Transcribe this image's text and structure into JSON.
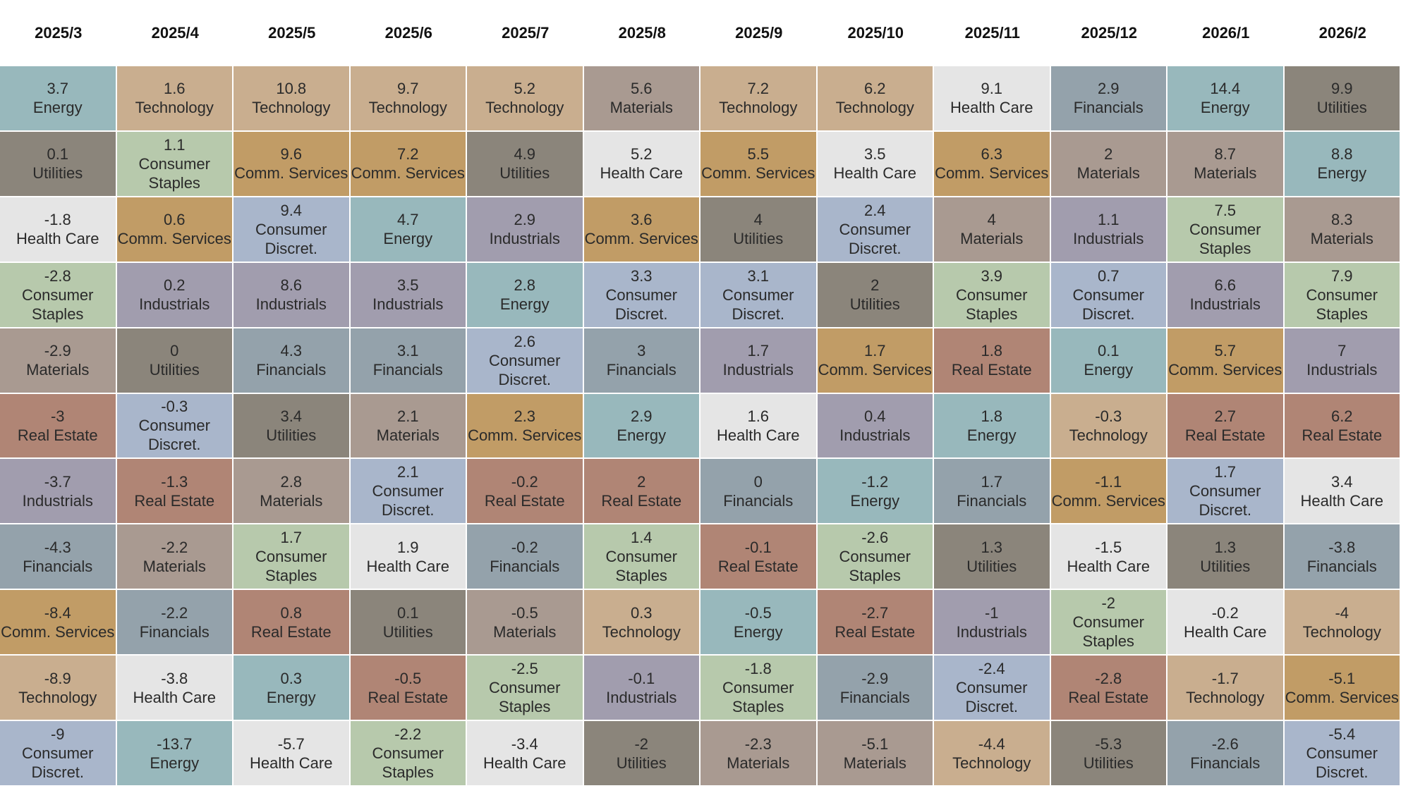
{
  "colors": {
    "Energy": "#98b8bc",
    "Technology": "#c9ae8f",
    "Materials": "#a99a91",
    "Health Care": "#e5e5e5",
    "Financials": "#94a2ab",
    "Utilities": "#8b857b",
    "Consumer Staples": "#b7c9ac",
    "Comm. Services": "#c19c66",
    "Consumer Discret.": "#a9b6cb",
    "Industrials": "#a19dae",
    "Real Estate": "#b08575"
  },
  "chart_data": {
    "type": "table",
    "columns": [
      "2025/3",
      "2025/4",
      "2025/5",
      "2025/6",
      "2025/7",
      "2025/8",
      "2025/9",
      "2025/10",
      "2025/11",
      "2025/12",
      "2026/1",
      "2026/2"
    ],
    "cells": [
      [
        [
          "3.7",
          "Energy"
        ],
        [
          "0.1",
          "Utilities"
        ],
        [
          "-1.8",
          "Health Care"
        ],
        [
          "-2.8",
          "Consumer Staples"
        ],
        [
          "-2.9",
          "Materials"
        ],
        [
          "-3",
          "Real Estate"
        ],
        [
          "-3.7",
          "Industrials"
        ],
        [
          "-4.3",
          "Financials"
        ],
        [
          "-8.4",
          "Comm. Services"
        ],
        [
          "-8.9",
          "Technology"
        ],
        [
          "-9",
          "Consumer Discret."
        ]
      ],
      [
        [
          "1.6",
          "Technology"
        ],
        [
          "1.1",
          "Consumer Staples"
        ],
        [
          "0.6",
          "Comm. Services"
        ],
        [
          "0.2",
          "Industrials"
        ],
        [
          "0",
          "Utilities"
        ],
        [
          "-0.3",
          "Consumer Discret."
        ],
        [
          "-1.3",
          "Real Estate"
        ],
        [
          "-2.2",
          "Materials"
        ],
        [
          "-2.2",
          "Financials"
        ],
        [
          "-3.8",
          "Health Care"
        ],
        [
          "-13.7",
          "Energy"
        ]
      ],
      [
        [
          "10.8",
          "Technology"
        ],
        [
          "9.6",
          "Comm. Services"
        ],
        [
          "9.4",
          "Consumer Discret."
        ],
        [
          "8.6",
          "Industrials"
        ],
        [
          "4.3",
          "Financials"
        ],
        [
          "3.4",
          "Utilities"
        ],
        [
          "2.8",
          "Materials"
        ],
        [
          "1.7",
          "Consumer Staples"
        ],
        [
          "0.8",
          "Real Estate"
        ],
        [
          "0.3",
          "Energy"
        ],
        [
          "-5.7",
          "Health Care"
        ]
      ],
      [
        [
          "9.7",
          "Technology"
        ],
        [
          "7.2",
          "Comm. Services"
        ],
        [
          "4.7",
          "Energy"
        ],
        [
          "3.5",
          "Industrials"
        ],
        [
          "3.1",
          "Financials"
        ],
        [
          "2.1",
          "Materials"
        ],
        [
          "2.1",
          "Consumer Discret."
        ],
        [
          "1.9",
          "Health Care"
        ],
        [
          "0.1",
          "Utilities"
        ],
        [
          "-0.5",
          "Real Estate"
        ],
        [
          "-2.2",
          "Consumer Staples"
        ]
      ],
      [
        [
          "5.2",
          "Technology"
        ],
        [
          "4.9",
          "Utilities"
        ],
        [
          "2.9",
          "Industrials"
        ],
        [
          "2.8",
          "Energy"
        ],
        [
          "2.6",
          "Consumer Discret."
        ],
        [
          "2.3",
          "Comm. Services"
        ],
        [
          "-0.2",
          "Real Estate"
        ],
        [
          "-0.2",
          "Financials"
        ],
        [
          "-0.5",
          "Materials"
        ],
        [
          "-2.5",
          "Consumer Staples"
        ],
        [
          "-3.4",
          "Health Care"
        ]
      ],
      [
        [
          "5.6",
          "Materials"
        ],
        [
          "5.2",
          "Health Care"
        ],
        [
          "3.6",
          "Comm. Services"
        ],
        [
          "3.3",
          "Consumer Discret."
        ],
        [
          "3",
          "Financials"
        ],
        [
          "2.9",
          "Energy"
        ],
        [
          "2",
          "Real Estate"
        ],
        [
          "1.4",
          "Consumer Staples"
        ],
        [
          "0.3",
          "Technology"
        ],
        [
          "-0.1",
          "Industrials"
        ],
        [
          "-2",
          "Utilities"
        ]
      ],
      [
        [
          "7.2",
          "Technology"
        ],
        [
          "5.5",
          "Comm. Services"
        ],
        [
          "4",
          "Utilities"
        ],
        [
          "3.1",
          "Consumer Discret."
        ],
        [
          "1.7",
          "Industrials"
        ],
        [
          "1.6",
          "Health Care"
        ],
        [
          "0",
          "Financials"
        ],
        [
          "-0.1",
          "Real Estate"
        ],
        [
          "-0.5",
          "Energy"
        ],
        [
          "-1.8",
          "Consumer Staples"
        ],
        [
          "-2.3",
          "Materials"
        ]
      ],
      [
        [
          "6.2",
          "Technology"
        ],
        [
          "3.5",
          "Health Care"
        ],
        [
          "2.4",
          "Consumer Discret."
        ],
        [
          "2",
          "Utilities"
        ],
        [
          "1.7",
          "Comm. Services"
        ],
        [
          "0.4",
          "Industrials"
        ],
        [
          "-1.2",
          "Energy"
        ],
        [
          "-2.6",
          "Consumer Staples"
        ],
        [
          "-2.7",
          "Real Estate"
        ],
        [
          "-2.9",
          "Financials"
        ],
        [
          "-5.1",
          "Materials"
        ]
      ],
      [
        [
          "9.1",
          "Health Care"
        ],
        [
          "6.3",
          "Comm. Services"
        ],
        [
          "4",
          "Materials"
        ],
        [
          "3.9",
          "Consumer Staples"
        ],
        [
          "1.8",
          "Real Estate"
        ],
        [
          "1.8",
          "Energy"
        ],
        [
          "1.7",
          "Financials"
        ],
        [
          "1.3",
          "Utilities"
        ],
        [
          "-1",
          "Industrials"
        ],
        [
          "-2.4",
          "Consumer Discret."
        ],
        [
          "-4.4",
          "Technology"
        ]
      ],
      [
        [
          "2.9",
          "Financials"
        ],
        [
          "2",
          "Materials"
        ],
        [
          "1.1",
          "Industrials"
        ],
        [
          "0.7",
          "Consumer Discret."
        ],
        [
          "0.1",
          "Energy"
        ],
        [
          "-0.3",
          "Technology"
        ],
        [
          "-1.1",
          "Comm. Services"
        ],
        [
          "-1.5",
          "Health Care"
        ],
        [
          "-2",
          "Consumer Staples"
        ],
        [
          "-2.8",
          "Real Estate"
        ],
        [
          "-5.3",
          "Utilities"
        ]
      ],
      [
        [
          "14.4",
          "Energy"
        ],
        [
          "8.7",
          "Materials"
        ],
        [
          "7.5",
          "Consumer Staples"
        ],
        [
          "6.6",
          "Industrials"
        ],
        [
          "5.7",
          "Comm. Services"
        ],
        [
          "2.7",
          "Real Estate"
        ],
        [
          "1.7",
          "Consumer Discret."
        ],
        [
          "1.3",
          "Utilities"
        ],
        [
          "-0.2",
          "Health Care"
        ],
        [
          "-1.7",
          "Technology"
        ],
        [
          "-2.6",
          "Financials"
        ]
      ],
      [
        [
          "9.9",
          "Utilities"
        ],
        [
          "8.8",
          "Energy"
        ],
        [
          "8.3",
          "Materials"
        ],
        [
          "7.9",
          "Consumer Staples"
        ],
        [
          "7",
          "Industrials"
        ],
        [
          "6.2",
          "Real Estate"
        ],
        [
          "3.4",
          "Health Care"
        ],
        [
          "-3.8",
          "Financials"
        ],
        [
          "-4",
          "Technology"
        ],
        [
          "-5.1",
          "Comm. Services"
        ],
        [
          "-5.4",
          "Consumer Discret."
        ]
      ]
    ]
  }
}
